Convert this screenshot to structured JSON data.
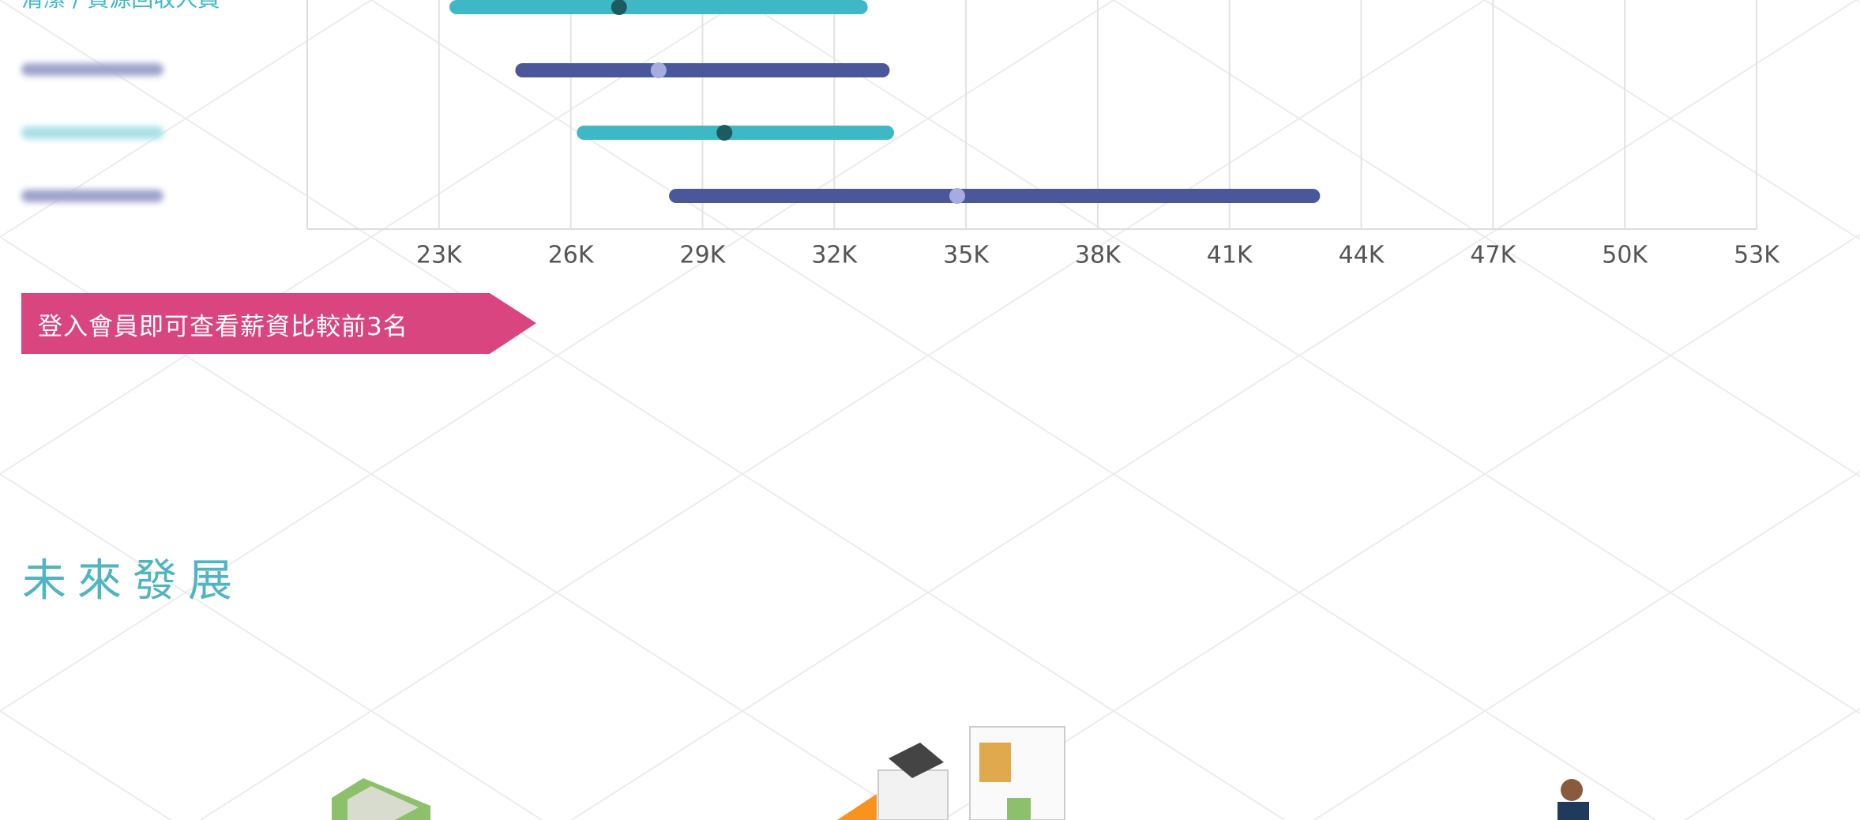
{
  "chart_data": {
    "type": "range",
    "categories": [
      "清潔 / 資源回收人員",
      null,
      null,
      null
    ],
    "low": [
      23400,
      24900,
      26300,
      28400
    ],
    "high": [
      32600,
      33100,
      33200,
      42900
    ],
    "median": [
      27100,
      28000,
      29500,
      34800
    ],
    "colors": [
      "#3fb8c6",
      "#4a579b",
      "#3fb8c6",
      "#4a579b"
    ],
    "median_colors": [
      "#1b5c60",
      "#a6acdf",
      "#1b5c60",
      "#a6acdf"
    ],
    "xlim": [
      20000,
      53000
    ],
    "xticks": [
      {
        "value": 23000,
        "label": "23K"
      },
      {
        "value": 26000,
        "label": "26K"
      },
      {
        "value": 29000,
        "label": "29K"
      },
      {
        "value": 32000,
        "label": "32K"
      },
      {
        "value": 35000,
        "label": "35K"
      },
      {
        "value": 38000,
        "label": "38K"
      },
      {
        "value": 41000,
        "label": "41K"
      },
      {
        "value": 44000,
        "label": "44K"
      },
      {
        "value": 47000,
        "label": "47K"
      },
      {
        "value": 50000,
        "label": "50K"
      },
      {
        "value": 53000,
        "label": "53K"
      }
    ],
    "grid": true
  },
  "login_banner": "登入會員即可查看薪資比較前3名",
  "section_title": "未來發展"
}
